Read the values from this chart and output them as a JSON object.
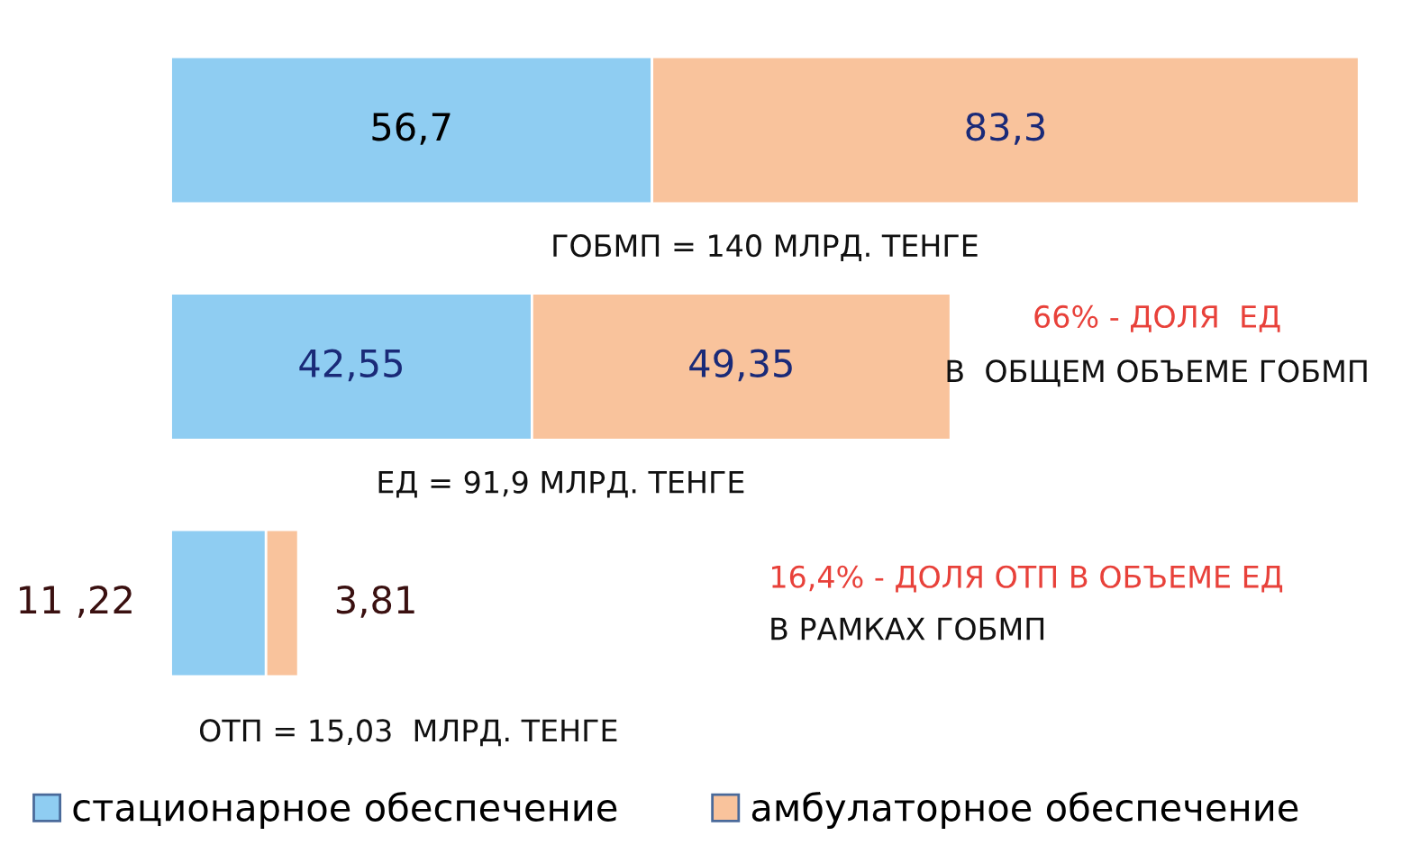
{
  "chart_data": {
    "type": "bar",
    "orientation": "horizontal",
    "stacked": true,
    "categories": [
      null,
      null,
      null
    ],
    "series": [
      {
        "name": "стационарное обеспечение",
        "color": "#8fcdf2",
        "values": [
          56.7,
          42.55,
          11.22
        ],
        "value_labels": [
          "56,7",
          "42,55",
          "11 ,22"
        ]
      },
      {
        "name": "амбулаторное обеспечение",
        "color": "#f9c39c",
        "values": [
          83.3,
          49.35,
          3.81
        ],
        "value_labels": [
          "83,3",
          "49,35",
          "3,81"
        ]
      }
    ],
    "annotations": [
      "ГОБМП = 140 МЛРД. ТЕНГЕ",
      "ЕД = 91,9 МЛРД. ТЕНГЕ",
      "ОТП = 15,03  МЛРД. ТЕНГЕ",
      "66% - ДОЛЯ  ЕД",
      "В  ОБЩЕМ ОБЪЕМЕ ГОБМП",
      "16,4% - ДОЛЯ ОТП В ОБЪЕМЕ ЕД",
      "В РАМКАХ ГОБМП"
    ],
    "legend": "bottom left"
  }
}
